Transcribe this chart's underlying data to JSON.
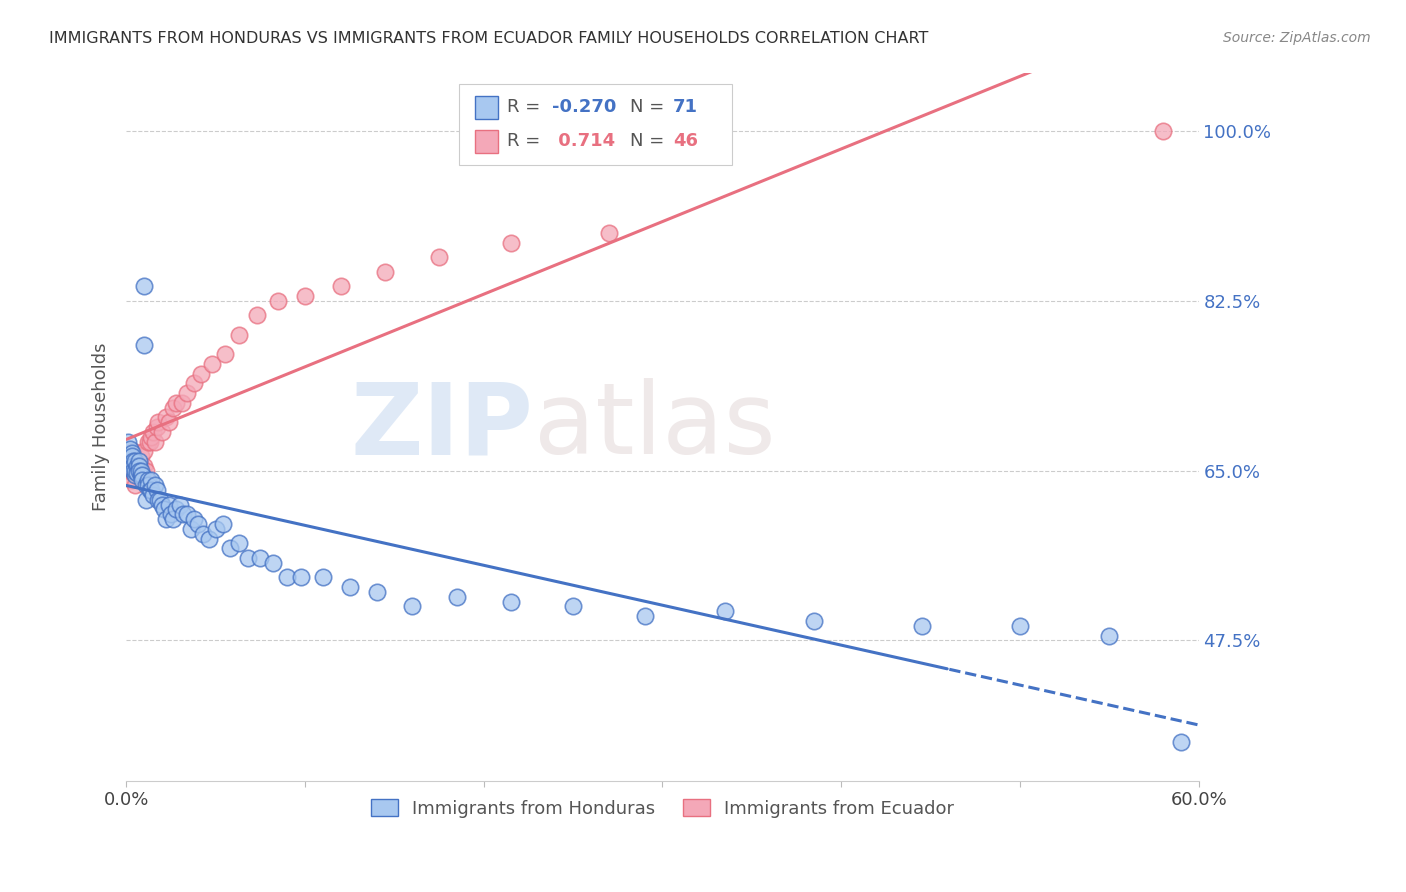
{
  "title": "IMMIGRANTS FROM HONDURAS VS IMMIGRANTS FROM ECUADOR FAMILY HOUSEHOLDS CORRELATION CHART",
  "source": "Source: ZipAtlas.com",
  "ylabel": "Family Households",
  "yticks": [
    0.475,
    0.65,
    0.825,
    1.0
  ],
  "ytick_labels": [
    "47.5%",
    "65.0%",
    "82.5%",
    "100.0%"
  ],
  "xmin": 0.0,
  "xmax": 0.6,
  "ymin": 0.33,
  "ymax": 1.06,
  "color_honduras": "#A8C8F0",
  "color_ecuador": "#F4A8B8",
  "color_honduras_line": "#4472C4",
  "color_ecuador_line": "#E87080",
  "color_ytick": "#4472C4",
  "watermark_zip": "ZIP",
  "watermark_atlas": "atlas",
  "solid_threshold": 0.46,
  "honduras_scatter_x": [
    0.001,
    0.002,
    0.003,
    0.003,
    0.004,
    0.004,
    0.004,
    0.005,
    0.005,
    0.005,
    0.006,
    0.006,
    0.007,
    0.007,
    0.007,
    0.008,
    0.008,
    0.009,
    0.009,
    0.01,
    0.01,
    0.011,
    0.011,
    0.012,
    0.012,
    0.013,
    0.014,
    0.014,
    0.015,
    0.016,
    0.017,
    0.018,
    0.019,
    0.02,
    0.021,
    0.022,
    0.024,
    0.025,
    0.026,
    0.028,
    0.03,
    0.032,
    0.034,
    0.036,
    0.038,
    0.04,
    0.043,
    0.046,
    0.05,
    0.054,
    0.058,
    0.063,
    0.068,
    0.075,
    0.082,
    0.09,
    0.098,
    0.11,
    0.125,
    0.14,
    0.16,
    0.185,
    0.215,
    0.25,
    0.29,
    0.335,
    0.385,
    0.445,
    0.5,
    0.55,
    0.59
  ],
  "honduras_scatter_y": [
    0.68,
    0.672,
    0.668,
    0.665,
    0.66,
    0.655,
    0.65,
    0.645,
    0.65,
    0.66,
    0.655,
    0.648,
    0.66,
    0.655,
    0.65,
    0.645,
    0.65,
    0.645,
    0.64,
    0.84,
    0.78,
    0.635,
    0.62,
    0.64,
    0.635,
    0.63,
    0.64,
    0.63,
    0.625,
    0.635,
    0.63,
    0.62,
    0.62,
    0.615,
    0.61,
    0.6,
    0.615,
    0.605,
    0.6,
    0.61,
    0.615,
    0.605,
    0.605,
    0.59,
    0.6,
    0.595,
    0.585,
    0.58,
    0.59,
    0.595,
    0.57,
    0.575,
    0.56,
    0.56,
    0.555,
    0.54,
    0.54,
    0.54,
    0.53,
    0.525,
    0.51,
    0.52,
    0.515,
    0.51,
    0.5,
    0.505,
    0.495,
    0.49,
    0.49,
    0.48,
    0.37
  ],
  "ecuador_scatter_x": [
    0.001,
    0.002,
    0.003,
    0.003,
    0.004,
    0.004,
    0.005,
    0.005,
    0.006,
    0.006,
    0.007,
    0.007,
    0.008,
    0.008,
    0.009,
    0.01,
    0.01,
    0.011,
    0.012,
    0.013,
    0.014,
    0.015,
    0.016,
    0.017,
    0.018,
    0.02,
    0.022,
    0.024,
    0.026,
    0.028,
    0.031,
    0.034,
    0.038,
    0.042,
    0.048,
    0.055,
    0.063,
    0.073,
    0.085,
    0.1,
    0.12,
    0.145,
    0.175,
    0.215,
    0.27,
    0.58
  ],
  "ecuador_scatter_y": [
    0.66,
    0.65,
    0.655,
    0.64,
    0.648,
    0.67,
    0.635,
    0.66,
    0.645,
    0.66,
    0.65,
    0.66,
    0.665,
    0.655,
    0.645,
    0.655,
    0.67,
    0.65,
    0.68,
    0.68,
    0.685,
    0.69,
    0.68,
    0.695,
    0.7,
    0.69,
    0.705,
    0.7,
    0.715,
    0.72,
    0.72,
    0.73,
    0.74,
    0.75,
    0.76,
    0.77,
    0.79,
    0.81,
    0.825,
    0.83,
    0.84,
    0.855,
    0.87,
    0.885,
    0.895,
    1.0
  ]
}
